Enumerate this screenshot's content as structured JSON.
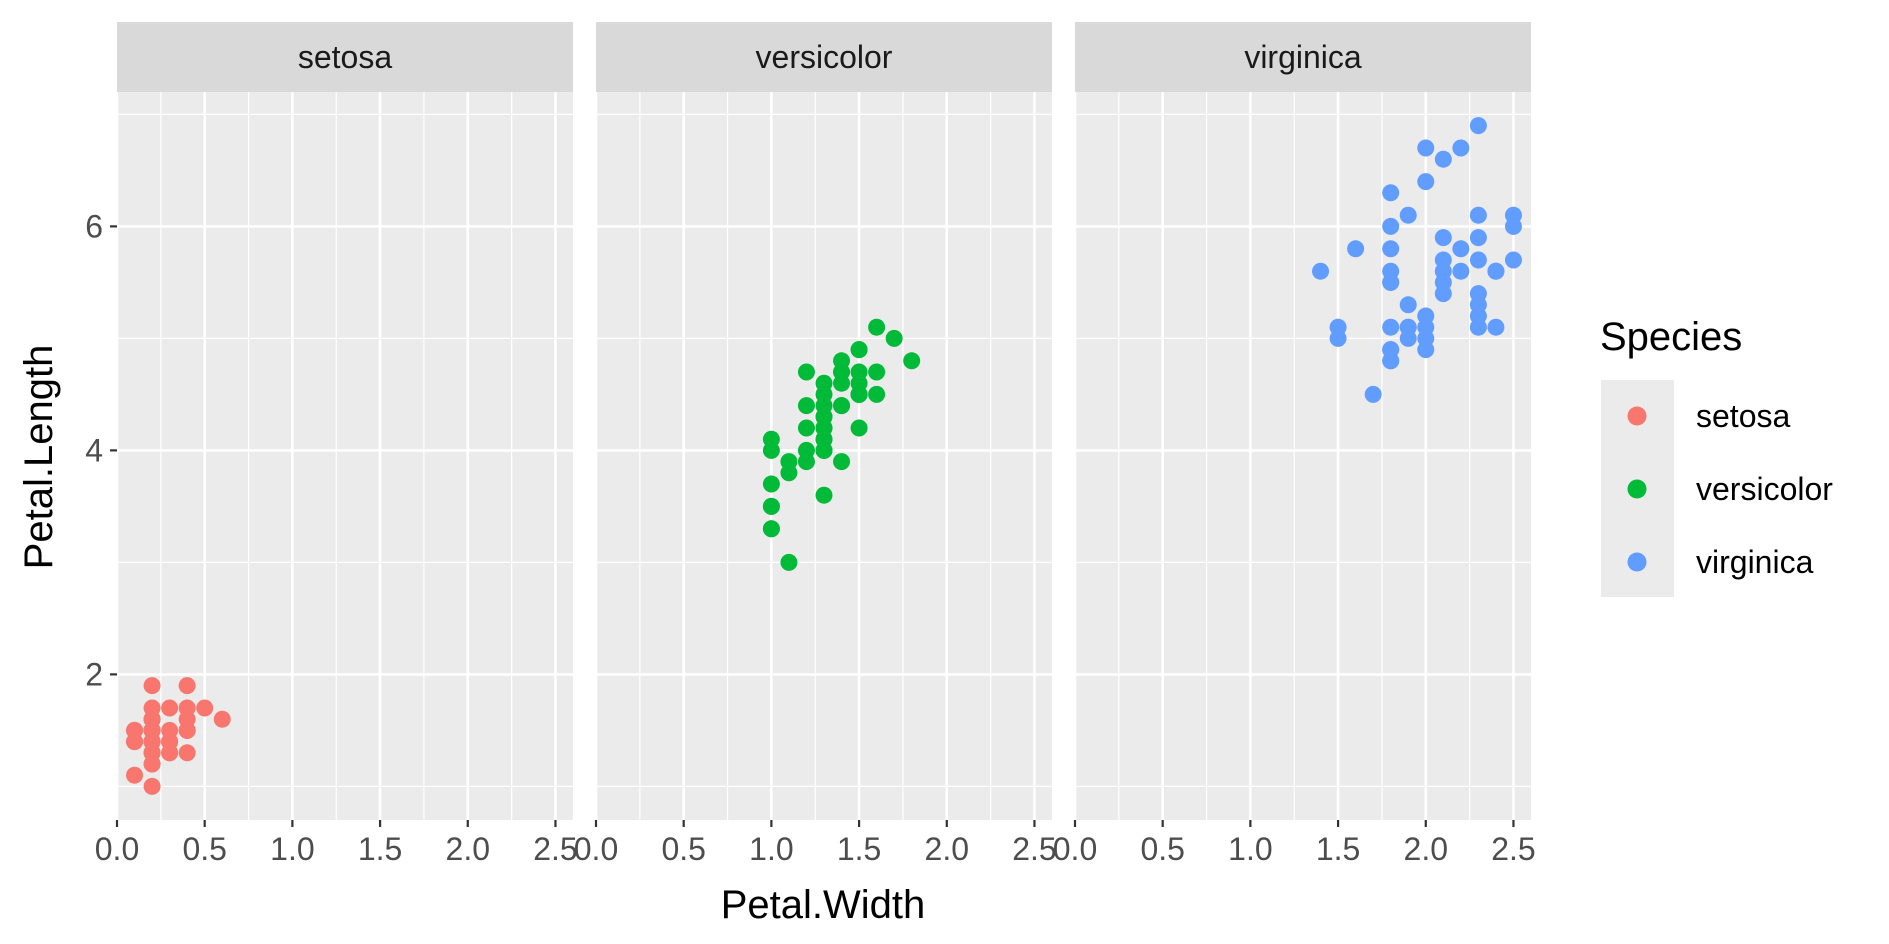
{
  "chart_data": {
    "type": "scatter",
    "facet_by": "Species",
    "facets": [
      "setosa",
      "versicolor",
      "virginica"
    ],
    "xlabel": "Petal.Width",
    "ylabel": "Petal.Length",
    "xlim": [
      0,
      2.6
    ],
    "ylim": [
      0.7,
      7.2
    ],
    "x_ticks": [
      0.0,
      0.5,
      1.0,
      1.5,
      2.0,
      2.5
    ],
    "x_tick_labels": [
      "0.0",
      "0.5",
      "1.0",
      "1.5",
      "2.0",
      "2.5"
    ],
    "y_ticks": [
      2,
      4,
      6
    ],
    "y_tick_labels": [
      "2",
      "4",
      "6"
    ],
    "grid": true,
    "legend": {
      "title": "Species",
      "position": "right",
      "entries": [
        {
          "label": "setosa",
          "color": "#F8766D"
        },
        {
          "label": "versicolor",
          "color": "#00BA38"
        },
        {
          "label": "virginica",
          "color": "#619CFF"
        }
      ]
    },
    "series": [
      {
        "name": "setosa",
        "color": "#F8766D",
        "points": [
          [
            0.2,
            1.4
          ],
          [
            0.2,
            1.4
          ],
          [
            0.2,
            1.3
          ],
          [
            0.2,
            1.5
          ],
          [
            0.2,
            1.4
          ],
          [
            0.4,
            1.7
          ],
          [
            0.3,
            1.4
          ],
          [
            0.2,
            1.5
          ],
          [
            0.2,
            1.4
          ],
          [
            0.1,
            1.5
          ],
          [
            0.2,
            1.5
          ],
          [
            0.2,
            1.6
          ],
          [
            0.1,
            1.4
          ],
          [
            0.1,
            1.1
          ],
          [
            0.2,
            1.2
          ],
          [
            0.4,
            1.5
          ],
          [
            0.4,
            1.3
          ],
          [
            0.3,
            1.4
          ],
          [
            0.3,
            1.7
          ],
          [
            0.3,
            1.5
          ],
          [
            0.2,
            1.7
          ],
          [
            0.4,
            1.5
          ],
          [
            0.2,
            1.0
          ],
          [
            0.5,
            1.7
          ],
          [
            0.2,
            1.9
          ],
          [
            0.2,
            1.6
          ],
          [
            0.4,
            1.6
          ],
          [
            0.2,
            1.5
          ],
          [
            0.2,
            1.4
          ],
          [
            0.2,
            1.6
          ],
          [
            0.2,
            1.6
          ],
          [
            0.4,
            1.5
          ],
          [
            0.1,
            1.5
          ],
          [
            0.2,
            1.4
          ],
          [
            0.2,
            1.5
          ],
          [
            0.2,
            1.2
          ],
          [
            0.2,
            1.3
          ],
          [
            0.1,
            1.4
          ],
          [
            0.2,
            1.3
          ],
          [
            0.2,
            1.5
          ],
          [
            0.3,
            1.3
          ],
          [
            0.3,
            1.3
          ],
          [
            0.2,
            1.3
          ],
          [
            0.6,
            1.6
          ],
          [
            0.4,
            1.9
          ],
          [
            0.3,
            1.4
          ],
          [
            0.2,
            1.6
          ],
          [
            0.2,
            1.4
          ],
          [
            0.2,
            1.5
          ],
          [
            0.2,
            1.4
          ]
        ]
      },
      {
        "name": "versicolor",
        "color": "#00BA38",
        "points": [
          [
            1.4,
            4.7
          ],
          [
            1.5,
            4.5
          ],
          [
            1.5,
            4.9
          ],
          [
            1.3,
            4.0
          ],
          [
            1.5,
            4.6
          ],
          [
            1.3,
            4.5
          ],
          [
            1.6,
            4.7
          ],
          [
            1.0,
            3.3
          ],
          [
            1.3,
            4.6
          ],
          [
            1.4,
            3.9
          ],
          [
            1.0,
            3.5
          ],
          [
            1.5,
            4.2
          ],
          [
            1.0,
            4.0
          ],
          [
            1.4,
            4.7
          ],
          [
            1.3,
            3.6
          ],
          [
            1.4,
            4.4
          ],
          [
            1.5,
            4.5
          ],
          [
            1.0,
            4.1
          ],
          [
            1.5,
            4.5
          ],
          [
            1.1,
            3.9
          ],
          [
            1.8,
            4.8
          ],
          [
            1.3,
            4.0
          ],
          [
            1.5,
            4.9
          ],
          [
            1.2,
            4.7
          ],
          [
            1.3,
            4.3
          ],
          [
            1.4,
            4.4
          ],
          [
            1.4,
            4.8
          ],
          [
            1.7,
            5.0
          ],
          [
            1.5,
            4.5
          ],
          [
            1.0,
            3.5
          ],
          [
            1.1,
            3.8
          ],
          [
            1.0,
            3.7
          ],
          [
            1.2,
            3.9
          ],
          [
            1.6,
            5.1
          ],
          [
            1.5,
            4.5
          ],
          [
            1.6,
            4.5
          ],
          [
            1.5,
            4.7
          ],
          [
            1.3,
            4.4
          ],
          [
            1.3,
            4.1
          ],
          [
            1.3,
            4.0
          ],
          [
            1.2,
            4.4
          ],
          [
            1.4,
            4.6
          ],
          [
            1.2,
            4.0
          ],
          [
            1.0,
            3.3
          ],
          [
            1.3,
            4.2
          ],
          [
            1.2,
            4.2
          ],
          [
            1.3,
            4.2
          ],
          [
            1.3,
            4.3
          ],
          [
            1.1,
            3.0
          ],
          [
            1.3,
            4.1
          ]
        ]
      },
      {
        "name": "virginica",
        "color": "#619CFF",
        "points": [
          [
            2.5,
            6.0
          ],
          [
            1.9,
            5.1
          ],
          [
            2.1,
            5.9
          ],
          [
            1.8,
            5.6
          ],
          [
            2.2,
            5.8
          ],
          [
            2.1,
            6.6
          ],
          [
            1.7,
            4.5
          ],
          [
            1.8,
            6.3
          ],
          [
            1.8,
            5.8
          ],
          [
            2.5,
            6.1
          ],
          [
            2.0,
            5.1
          ],
          [
            1.9,
            5.3
          ],
          [
            2.1,
            5.5
          ],
          [
            2.0,
            5.0
          ],
          [
            2.4,
            5.1
          ],
          [
            2.3,
            5.3
          ],
          [
            1.8,
            5.5
          ],
          [
            2.2,
            6.7
          ],
          [
            2.3,
            6.9
          ],
          [
            1.5,
            5.0
          ],
          [
            2.3,
            5.7
          ],
          [
            2.0,
            4.9
          ],
          [
            2.0,
            6.7
          ],
          [
            1.8,
            4.9
          ],
          [
            2.1,
            5.7
          ],
          [
            1.8,
            6.0
          ],
          [
            1.8,
            4.8
          ],
          [
            1.8,
            4.9
          ],
          [
            2.1,
            5.6
          ],
          [
            1.6,
            5.8
          ],
          [
            1.9,
            6.1
          ],
          [
            2.0,
            6.4
          ],
          [
            2.2,
            5.6
          ],
          [
            1.5,
            5.1
          ],
          [
            1.4,
            5.6
          ],
          [
            2.3,
            6.1
          ],
          [
            2.4,
            5.6
          ],
          [
            1.8,
            5.5
          ],
          [
            1.8,
            4.8
          ],
          [
            2.1,
            5.4
          ],
          [
            2.4,
            5.6
          ],
          [
            2.3,
            5.1
          ],
          [
            1.9,
            5.1
          ],
          [
            2.3,
            5.9
          ],
          [
            2.5,
            5.7
          ],
          [
            2.3,
            5.2
          ],
          [
            1.9,
            5.0
          ],
          [
            2.0,
            5.2
          ],
          [
            2.3,
            5.4
          ],
          [
            1.8,
            5.1
          ]
        ]
      }
    ]
  }
}
